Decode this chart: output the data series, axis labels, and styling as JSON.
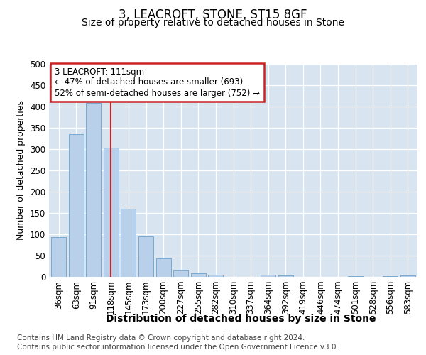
{
  "title": "3, LEACROFT, STONE, ST15 8GF",
  "subtitle": "Size of property relative to detached houses in Stone",
  "xlabel": "Distribution of detached houses by size in Stone",
  "ylabel": "Number of detached properties",
  "categories": [
    "36sqm",
    "63sqm",
    "91sqm",
    "118sqm",
    "145sqm",
    "173sqm",
    "200sqm",
    "227sqm",
    "255sqm",
    "282sqm",
    "310sqm",
    "337sqm",
    "364sqm",
    "392sqm",
    "419sqm",
    "446sqm",
    "474sqm",
    "501sqm",
    "528sqm",
    "556sqm",
    "583sqm"
  ],
  "values": [
    93,
    335,
    408,
    303,
    160,
    95,
    44,
    17,
    9,
    5,
    0,
    0,
    5,
    4,
    0,
    0,
    0,
    2,
    0,
    2,
    4
  ],
  "bar_color": "#b8d0ea",
  "bar_edge_color": "#7aa8d0",
  "vline_x": 2.98,
  "vline_color": "#cc2222",
  "annotation_text": "3 LEACROFT: 111sqm\n← 47% of detached houses are smaller (693)\n52% of semi-detached houses are larger (752) →",
  "annotation_box_color": "#ffffff",
  "annotation_box_edge_color": "#cc2222",
  "ylim": [
    0,
    500
  ],
  "yticks": [
    0,
    50,
    100,
    150,
    200,
    250,
    300,
    350,
    400,
    450,
    500
  ],
  "footer_line1": "Contains HM Land Registry data © Crown copyright and database right 2024.",
  "footer_line2": "Contains public sector information licensed under the Open Government Licence v3.0.",
  "fig_background_color": "#ffffff",
  "plot_background_color": "#d8e4f0",
  "title_fontsize": 12,
  "subtitle_fontsize": 10,
  "footer_fontsize": 7.5,
  "xlabel_fontsize": 10,
  "ylabel_fontsize": 9,
  "tick_fontsize": 8.5,
  "annotation_fontsize": 8.5
}
